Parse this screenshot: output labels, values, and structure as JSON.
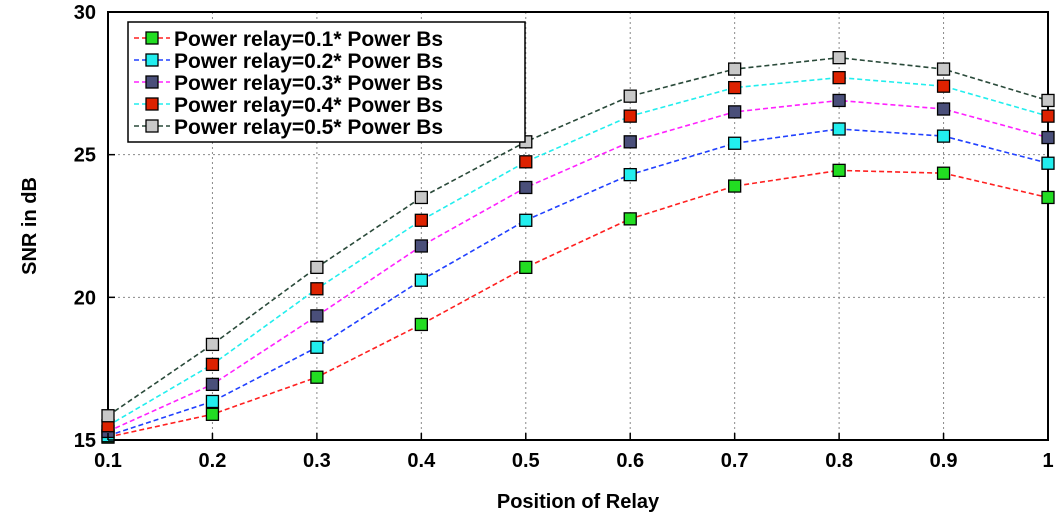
{
  "chart_data": {
    "type": "line",
    "title": "",
    "xlabel": "Position of Relay",
    "ylabel": "SNR in dB",
    "x": [
      0.1,
      0.2,
      0.3,
      0.4,
      0.5,
      0.6,
      0.7,
      0.8,
      0.9,
      1.0
    ],
    "xlim": [
      0.1,
      1.0
    ],
    "ylim": [
      15,
      30
    ],
    "x_ticks": [
      "0.1",
      "0.2",
      "0.3",
      "0.4",
      "0.5",
      "0.6",
      "0.7",
      "0.8",
      "0.9",
      "1"
    ],
    "y_ticks": [
      "15",
      "20",
      "25",
      "30"
    ],
    "grid": true,
    "legend_position": "top-left",
    "series": [
      {
        "name": "Power relay=0.1* Power Bs",
        "line_color": "#ff2020",
        "marker_color": "#22dd22",
        "values": [
          15.1,
          15.9,
          17.2,
          19.05,
          21.05,
          22.75,
          23.9,
          24.45,
          24.35,
          23.5
        ]
      },
      {
        "name": "Power relay=0.2* Power Bs",
        "line_color": "#2040ff",
        "marker_color": "#22eeee",
        "values": [
          15.15,
          16.35,
          18.25,
          20.6,
          22.7,
          24.3,
          25.4,
          25.9,
          25.65,
          24.7
        ]
      },
      {
        "name": "Power relay=0.3* Power Bs",
        "line_color": "#ff22ff",
        "marker_color": "#4a4f7a",
        "values": [
          15.3,
          16.95,
          19.35,
          21.8,
          23.85,
          25.45,
          26.5,
          26.9,
          26.6,
          25.6
        ]
      },
      {
        "name": "Power relay=0.4* Power Bs",
        "line_color": "#22eeee",
        "marker_color": "#dd2200",
        "values": [
          15.5,
          17.65,
          20.3,
          22.7,
          24.75,
          26.35,
          27.35,
          27.7,
          27.4,
          26.35
        ]
      },
      {
        "name": "Power relay=0.5* Power Bs",
        "line_color": "#2a4a3a",
        "marker_color": "#c8c8c8",
        "values": [
          15.85,
          18.35,
          21.05,
          23.5,
          25.45,
          27.05,
          28.0,
          28.4,
          28.0,
          26.9
        ]
      }
    ]
  }
}
